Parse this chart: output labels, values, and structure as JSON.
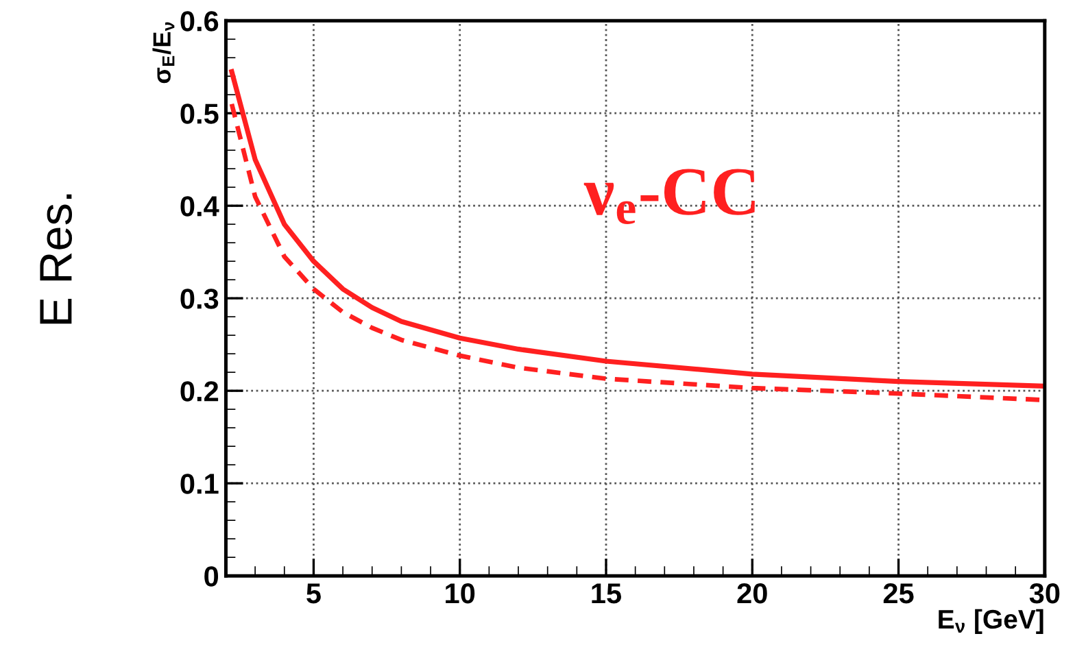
{
  "chart_data": {
    "type": "line",
    "xlabel": "E$_{ν}$ [GeV]",
    "ylabel": "σ$_{E}$/E$_{ν}$",
    "x": [
      2.2,
      3,
      4,
      5,
      6,
      7,
      8,
      10,
      12,
      15,
      20,
      25,
      30
    ],
    "series": [
      {
        "color": "#ff2020",
        "line_style": "solid",
        "values": [
          0.545,
          0.45,
          0.38,
          0.34,
          0.31,
          0.29,
          0.275,
          0.257,
          0.245,
          0.232,
          0.218,
          0.21,
          0.205
        ]
      },
      {
        "color": "#ff2020",
        "line_style": "dashed",
        "values": [
          0.51,
          0.41,
          0.345,
          0.31,
          0.285,
          0.268,
          0.255,
          0.238,
          0.225,
          0.213,
          0.203,
          0.197,
          0.19
        ]
      }
    ],
    "xlim": [
      2,
      30
    ],
    "xticks": [
      5,
      10,
      15,
      20,
      25,
      30
    ],
    "ylim": [
      0,
      0.6
    ],
    "yticks": [
      0,
      0.1,
      0.2,
      0.3,
      0.4,
      0.5,
      0.6
    ],
    "grid": true,
    "marker": "none",
    "annotations": [
      "ν$_{e}$-CC",
      "E Res."
    ]
  }
}
